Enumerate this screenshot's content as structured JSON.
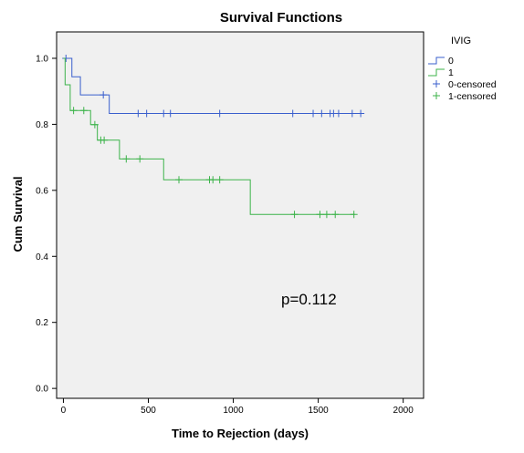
{
  "chart_data": {
    "type": "line",
    "subtype": "kaplan-meier step",
    "title": "Survival Functions",
    "xlabel": "Time to Rejection (days)",
    "ylabel": "Cum Survival",
    "xlim": [
      -40,
      2120
    ],
    "ylim": [
      -0.03,
      1.08
    ],
    "xticks": [
      0,
      500,
      1000,
      1500,
      2000
    ],
    "yticks": [
      0.0,
      0.2,
      0.4,
      0.6,
      0.8,
      1.0
    ],
    "xtick_labels": [
      "0",
      "500",
      "1000",
      "1500",
      "2000"
    ],
    "ytick_labels": [
      "0.0",
      "0.2",
      "0.4",
      "0.6",
      "0.8",
      "1.0"
    ],
    "grid": false,
    "legend_title": "IVIG",
    "legend_position": "right",
    "legend": [
      "0",
      "1",
      "0-censored",
      "1-censored"
    ],
    "annotation": "p=0.112",
    "background_color": "#f0f0f0",
    "series": [
      {
        "name": "0",
        "color": "#3a5fcd",
        "steps": [
          [
            0,
            1.0
          ],
          [
            50,
            0.944
          ],
          [
            100,
            0.889
          ],
          [
            270,
            0.833
          ],
          [
            1760,
            0.833
          ]
        ],
        "censored": [
          [
            15,
            1.0
          ],
          [
            235,
            0.889
          ],
          [
            440,
            0.833
          ],
          [
            490,
            0.833
          ],
          [
            590,
            0.833
          ],
          [
            630,
            0.833
          ],
          [
            920,
            0.833
          ],
          [
            1350,
            0.833
          ],
          [
            1470,
            0.833
          ],
          [
            1520,
            0.833
          ],
          [
            1570,
            0.833
          ],
          [
            1590,
            0.833
          ],
          [
            1620,
            0.833
          ],
          [
            1700,
            0.833
          ],
          [
            1750,
            0.833
          ]
        ]
      },
      {
        "name": "1",
        "color": "#3cb34a",
        "steps": [
          [
            0,
            1.0
          ],
          [
            10,
            0.92
          ],
          [
            40,
            0.842
          ],
          [
            160,
            0.799
          ],
          [
            200,
            0.752
          ],
          [
            330,
            0.695
          ],
          [
            590,
            0.632
          ],
          [
            1100,
            0.527
          ],
          [
            1715,
            0.527
          ]
        ],
        "censored": [
          [
            60,
            0.842
          ],
          [
            120,
            0.842
          ],
          [
            185,
            0.799
          ],
          [
            220,
            0.752
          ],
          [
            240,
            0.752
          ],
          [
            370,
            0.695
          ],
          [
            450,
            0.695
          ],
          [
            680,
            0.632
          ],
          [
            860,
            0.632
          ],
          [
            880,
            0.632
          ],
          [
            920,
            0.632
          ],
          [
            1360,
            0.527
          ],
          [
            1510,
            0.527
          ],
          [
            1550,
            0.527
          ],
          [
            1600,
            0.527
          ],
          [
            1710,
            0.527
          ]
        ]
      }
    ]
  }
}
